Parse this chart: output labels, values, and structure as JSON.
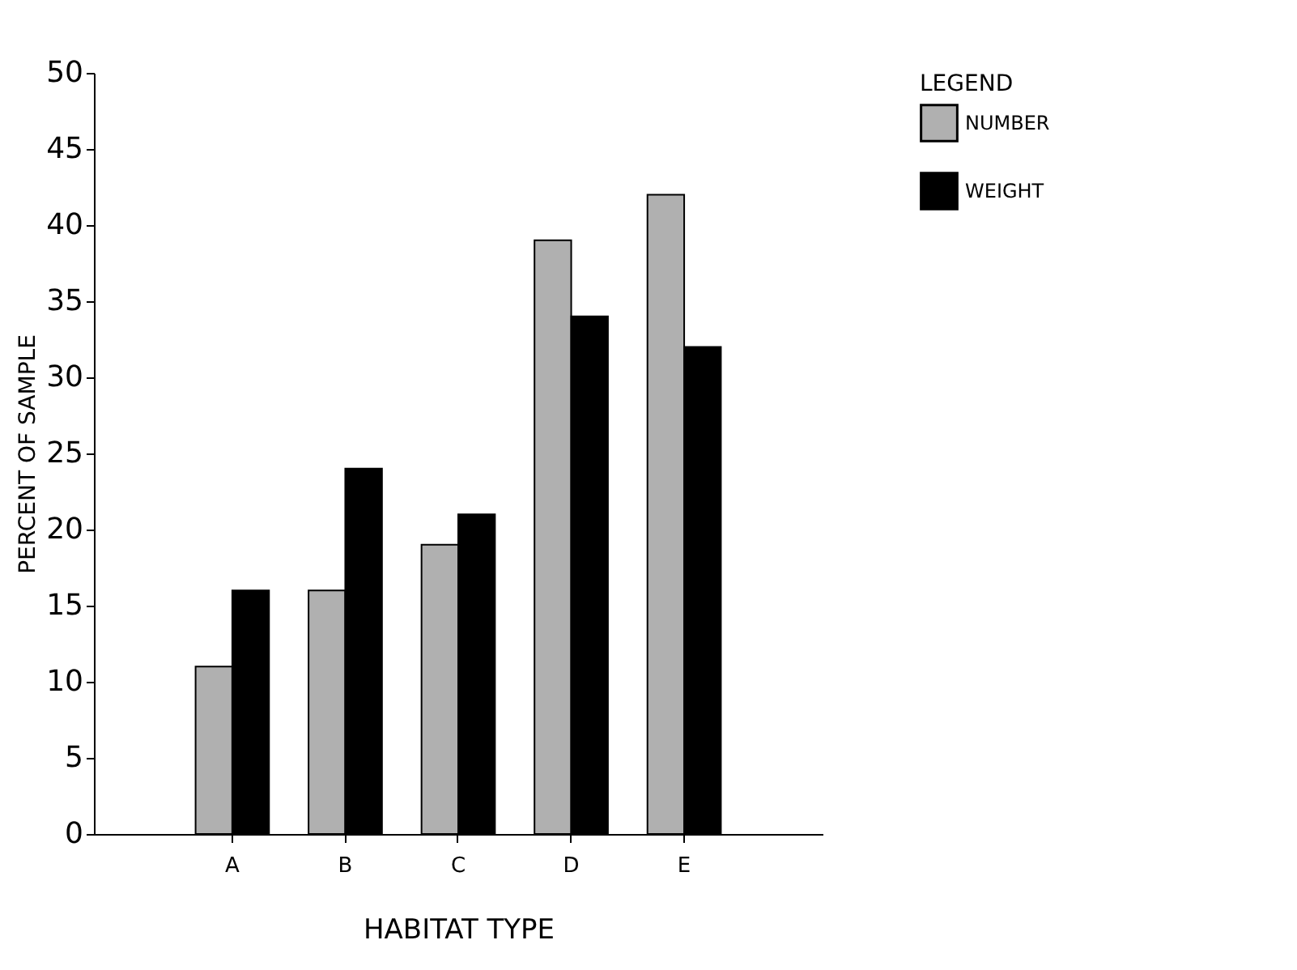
{
  "chart_data": {
    "type": "bar",
    "xlabel": "HABITAT TYPE",
    "ylabel": "PERCENT OF SAMPLE",
    "legend_title": "LEGEND",
    "categories": [
      "A",
      "B",
      "C",
      "D",
      "E"
    ],
    "series": [
      {
        "name": "NUMBER",
        "color": "#b0b0b0",
        "values": [
          11,
          16,
          19,
          39,
          42
        ]
      },
      {
        "name": "WEIGHT",
        "color": "#000000",
        "values": [
          16,
          24,
          21,
          34,
          32
        ]
      }
    ],
    "ylim": [
      0,
      50
    ],
    "yticks": [
      0,
      5,
      10,
      15,
      20,
      25,
      30,
      35,
      40,
      45,
      50
    ],
    "grid": false,
    "legend": "top right"
  }
}
